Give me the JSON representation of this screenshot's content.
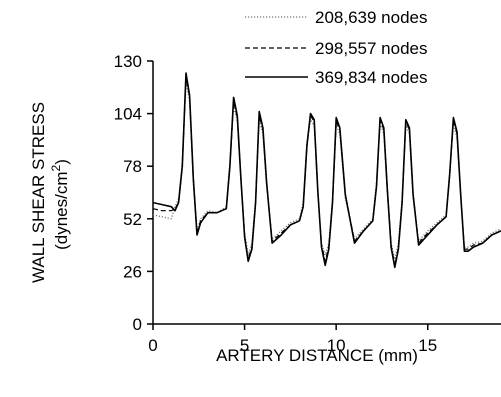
{
  "chart_data": {
    "type": "line",
    "title": "",
    "xlabel": "ARTERY DISTANCE (mm)",
    "ylabel_line1": "WALL SHEAR STRESS",
    "ylabel_line2_prefix": "(dynes/cm",
    "ylabel_line2_sup": "2",
    "ylabel_line2_suffix": ")",
    "xlim": [
      0,
      19
    ],
    "ylim": [
      0,
      130
    ],
    "xticks": [
      0,
      5,
      10,
      15
    ],
    "xtick_labels": [
      "0",
      "5",
      "10",
      "15"
    ],
    "yticks": [
      0,
      26,
      52,
      78,
      104,
      130
    ],
    "ytick_labels": [
      "0",
      "26",
      "52",
      "78",
      "104",
      "130"
    ],
    "grid": false,
    "legend_position": "top-right",
    "colors": {
      "axis": "#000000",
      "series_primary": "#000000",
      "series_dotted": "#777777"
    },
    "series": [
      {
        "name": "208,639 nodes",
        "style": "dotted",
        "x": [
          0,
          0.5,
          1.0,
          1.2,
          1.4,
          1.6,
          1.8,
          2.0,
          2.2,
          2.4,
          2.6,
          3.0,
          3.5,
          4.0,
          4.2,
          4.4,
          4.6,
          4.8,
          5.0,
          5.2,
          5.4,
          5.6,
          5.8,
          6.0,
          6.2,
          6.5,
          7.0,
          7.5,
          8.0,
          8.2,
          8.4,
          8.6,
          8.8,
          9.0,
          9.2,
          9.4,
          9.6,
          9.8,
          10.0,
          10.2,
          10.5,
          11.0,
          11.5,
          12.0,
          12.2,
          12.4,
          12.6,
          12.8,
          13.0,
          13.2,
          13.4,
          13.6,
          13.8,
          14.0,
          14.2,
          14.5,
          15.0,
          15.5,
          16.0,
          16.2,
          16.4,
          16.6,
          16.8,
          17.0,
          17.2,
          17.5,
          18.0,
          18.5,
          19.0
        ],
        "y": [
          54,
          53,
          52,
          58,
          62,
          80,
          120,
          110,
          70,
          46,
          52,
          56,
          55,
          58,
          80,
          108,
          100,
          70,
          45,
          34,
          40,
          62,
          101,
          94,
          68,
          42,
          46,
          50,
          52,
          60,
          90,
          101,
          98,
          64,
          40,
          34,
          40,
          62,
          98,
          94,
          62,
          42,
          47,
          52,
          70,
          99,
          94,
          64,
          40,
          32,
          40,
          62,
          98,
          94,
          62,
          41,
          46,
          50,
          54,
          76,
          99,
          92,
          62,
          38,
          38,
          40,
          41,
          45,
          47
        ]
      },
      {
        "name": "298,557 nodes",
        "style": "dashed",
        "x": [
          0,
          0.5,
          1.0,
          1.2,
          1.4,
          1.6,
          1.8,
          2.0,
          2.2,
          2.4,
          2.6,
          3.0,
          3.5,
          4.0,
          4.2,
          4.4,
          4.6,
          4.8,
          5.0,
          5.2,
          5.4,
          5.6,
          5.8,
          6.0,
          6.2,
          6.5,
          7.0,
          7.5,
          8.0,
          8.2,
          8.4,
          8.6,
          8.8,
          9.0,
          9.2,
          9.4,
          9.6,
          9.8,
          10.0,
          10.2,
          10.5,
          11.0,
          11.5,
          12.0,
          12.2,
          12.4,
          12.6,
          12.8,
          13.0,
          13.2,
          13.4,
          13.6,
          13.8,
          14.0,
          14.2,
          14.5,
          15.0,
          15.5,
          16.0,
          16.2,
          16.4,
          16.6,
          16.8,
          17.0,
          17.2,
          17.5,
          18.0,
          18.5,
          19.0
        ],
        "y": [
          57,
          56,
          56,
          57,
          60,
          78,
          122,
          112,
          72,
          45,
          51,
          55,
          55,
          57,
          78,
          110,
          102,
          72,
          44,
          32,
          38,
          60,
          103,
          96,
          70,
          41,
          45,
          49,
          51,
          58,
          88,
          103,
          100,
          66,
          39,
          31,
          38,
          60,
          100,
          96,
          64,
          41,
          46,
          51,
          68,
          101,
          96,
          66,
          39,
          29,
          38,
          60,
          100,
          96,
          64,
          40,
          45,
          49,
          53,
          74,
          101,
          94,
          64,
          37,
          37,
          39,
          40,
          44,
          46
        ]
      },
      {
        "name": "369,834 nodes",
        "style": "solid",
        "x": [
          0,
          0.5,
          1.0,
          1.2,
          1.4,
          1.6,
          1.8,
          2.0,
          2.2,
          2.4,
          2.6,
          3.0,
          3.5,
          4.0,
          4.2,
          4.4,
          4.6,
          4.8,
          5.0,
          5.2,
          5.4,
          5.6,
          5.8,
          6.0,
          6.2,
          6.5,
          7.0,
          7.5,
          8.0,
          8.2,
          8.4,
          8.6,
          8.8,
          9.0,
          9.2,
          9.4,
          9.6,
          9.8,
          10.0,
          10.2,
          10.5,
          11.0,
          11.5,
          12.0,
          12.2,
          12.4,
          12.6,
          12.8,
          13.0,
          13.2,
          13.4,
          13.6,
          13.8,
          14.0,
          14.2,
          14.5,
          15.0,
          15.5,
          16.0,
          16.2,
          16.4,
          16.6,
          16.8,
          17.0,
          17.2,
          17.5,
          18.0,
          18.5,
          19.0
        ],
        "y": [
          60,
          59,
          58,
          56,
          60,
          78,
          124,
          113,
          72,
          44,
          50,
          55,
          55,
          57,
          78,
          112,
          103,
          72,
          43,
          31,
          37,
          60,
          105,
          97,
          70,
          40,
          44,
          49,
          51,
          58,
          88,
          104,
          101,
          66,
          38,
          29,
          37,
          60,
          102,
          97,
          64,
          40,
          46,
          51,
          68,
          102,
          97,
          66,
          38,
          28,
          37,
          60,
          101,
          97,
          64,
          39,
          44,
          49,
          53,
          74,
          102,
          95,
          64,
          36,
          36,
          38,
          40,
          44,
          46
        ]
      }
    ]
  }
}
